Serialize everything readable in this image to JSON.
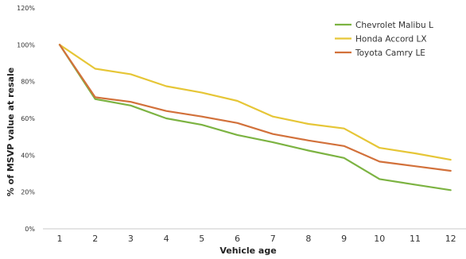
{
  "chart_data": {
    "type": "line",
    "title": "",
    "xlabel": "Vehicle age",
    "ylabel": "% of MSVP value at resale",
    "categories": [
      "1",
      "2",
      "3",
      "4",
      "5",
      "6",
      "7",
      "8",
      "9",
      "10",
      "11",
      "12"
    ],
    "ylim": [
      0,
      120
    ],
    "yticks": [
      0,
      20,
      40,
      60,
      80,
      100,
      120
    ],
    "ytick_labels": [
      "0%",
      "20%",
      "40%",
      "60%",
      "80%",
      "100%",
      "120%"
    ],
    "grid": false,
    "legend_position": "top-right",
    "series": [
      {
        "name": "Chevrolet Malibu L",
        "color": "#7cb342",
        "values": [
          100,
          70.5,
          67,
          60,
          56.5,
          51,
          47,
          42.5,
          38.5,
          27,
          24,
          21
        ]
      },
      {
        "name": "Honda Accord LX",
        "color": "#e6c637",
        "values": [
          100,
          87,
          84,
          77.5,
          74,
          69.5,
          61,
          57,
          54.5,
          44,
          41,
          37.5
        ]
      },
      {
        "name": "Toyota Camry LE",
        "color": "#d2713b",
        "values": [
          100,
          71.5,
          69,
          64,
          61,
          57.5,
          51.5,
          48,
          45,
          36.5,
          34,
          31.5
        ]
      }
    ]
  }
}
